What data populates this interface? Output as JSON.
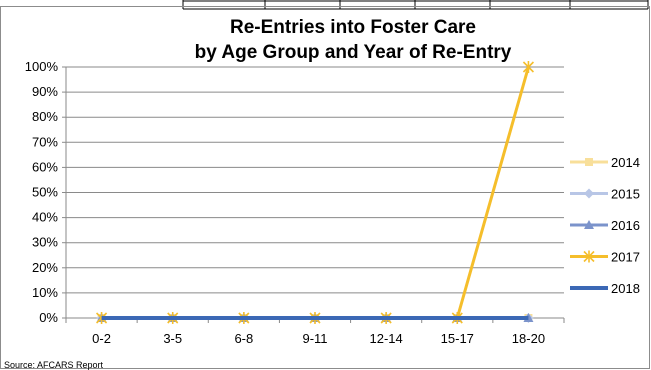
{
  "chart_data": {
    "type": "line",
    "title_lines": [
      "Re-Entries into Foster Care",
      "by Age Group and Year of Re-Entry"
    ],
    "categories": [
      "0-2",
      "3-5",
      "6-8",
      "9-11",
      "12-14",
      "15-17",
      "18-20"
    ],
    "y_ticks": [
      "0%",
      "10%",
      "20%",
      "30%",
      "40%",
      "50%",
      "60%",
      "70%",
      "80%",
      "90%",
      "100%"
    ],
    "ylim": [
      0,
      100
    ],
    "y_unit": "%",
    "grid": true,
    "legend_position": "right",
    "series": [
      {
        "name": "2014",
        "values": [
          0,
          0,
          0,
          0,
          0,
          0,
          0
        ],
        "color": "#F8DF9A",
        "marker": "square",
        "width": 3
      },
      {
        "name": "2015",
        "values": [
          0,
          0,
          0,
          0,
          0,
          0,
          0
        ],
        "color": "#B8C6E6",
        "marker": "diamond",
        "width": 3
      },
      {
        "name": "2016",
        "values": [
          0,
          0,
          0,
          0,
          0,
          0,
          0
        ],
        "color": "#7B93CB",
        "marker": "triangle",
        "width": 3
      },
      {
        "name": "2017",
        "values": [
          0,
          0,
          0,
          0,
          0,
          0,
          100
        ],
        "color": "#F5BE2B",
        "marker": "star",
        "width": 3
      },
      {
        "name": "2018",
        "values": [
          0,
          0,
          0,
          0,
          0,
          0,
          0
        ],
        "color": "#3B68B5",
        "marker": "none",
        "width": 4
      }
    ],
    "source": "Source: AFCARS Report"
  }
}
